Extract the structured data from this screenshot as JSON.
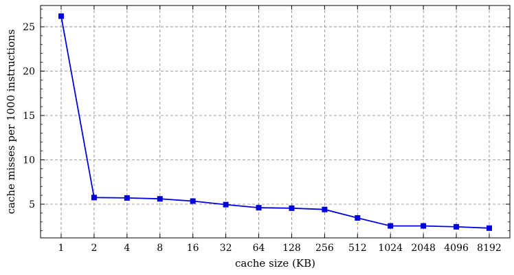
{
  "chart_data": {
    "type": "line",
    "title": "",
    "xlabel": "cache size (KB)",
    "ylabel": "cache misses per 1000 instructions",
    "categories": [
      "1",
      "2",
      "4",
      "8",
      "16",
      "32",
      "64",
      "128",
      "256",
      "512",
      "1024",
      "2048",
      "4096",
      "8192"
    ],
    "series": [
      {
        "values": [
          26.2,
          5.75,
          5.7,
          5.6,
          5.35,
          4.95,
          4.6,
          4.55,
          4.4,
          3.45,
          2.55,
          2.55,
          2.45,
          2.3
        ],
        "color": "#0000dd",
        "marker": "square"
      }
    ],
    "ylim": [
      1.2,
      27.4
    ],
    "yticks": [
      5,
      10,
      15,
      20,
      25
    ],
    "ytick_labels": [
      "5",
      "10",
      "15",
      "20",
      "25"
    ],
    "grid": true,
    "legend": "none"
  }
}
